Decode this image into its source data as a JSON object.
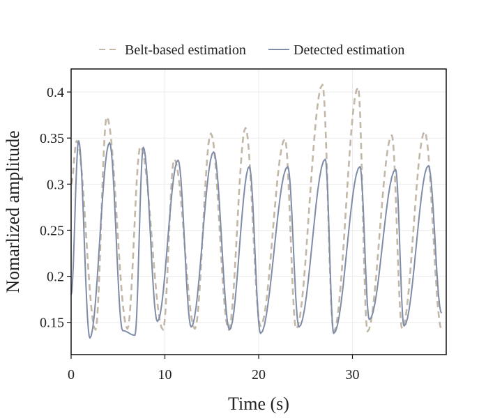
{
  "chart_data": {
    "type": "line",
    "xlabel": "Time (s)",
    "ylabel": "Nomarlized amplitude",
    "xlim": [
      0,
      40
    ],
    "ylim": [
      0.115,
      0.425
    ],
    "xticks": [
      0,
      10,
      20,
      30
    ],
    "yticks": [
      0.15,
      0.2,
      0.25,
      0.3,
      0.35,
      0.4
    ],
    "ytick_labels": [
      "0.15",
      "0.2",
      "0.25",
      "0.3",
      "0.35",
      "0.4"
    ],
    "grid": true,
    "legend_position": "top",
    "series": [
      {
        "name": "Belt-based estimation",
        "style": "dashed",
        "color": "#c3b8a8",
        "troughs": [
          [
            0.0,
            0.3
          ],
          [
            2.6,
            0.142
          ],
          [
            6.0,
            0.143
          ],
          [
            9.8,
            0.142
          ],
          [
            13.2,
            0.143
          ],
          [
            16.8,
            0.142
          ],
          [
            20.2,
            0.146
          ],
          [
            24.0,
            0.143
          ],
          [
            28.0,
            0.14
          ],
          [
            31.6,
            0.14
          ],
          [
            35.3,
            0.143
          ],
          [
            39.5,
            0.143
          ]
        ],
        "peaks": [
          [
            0.6,
            0.347
          ],
          [
            3.8,
            0.373
          ],
          [
            7.4,
            0.341
          ],
          [
            11.0,
            0.327
          ],
          [
            14.9,
            0.355
          ],
          [
            18.6,
            0.361
          ],
          [
            22.8,
            0.349
          ],
          [
            26.8,
            0.408
          ],
          [
            30.6,
            0.405
          ],
          [
            34.2,
            0.353
          ],
          [
            37.7,
            0.357
          ]
        ]
      },
      {
        "name": "Detected estimation",
        "style": "solid",
        "color": "#7f8ca8",
        "troughs": [
          [
            0.0,
            0.18
          ],
          [
            2.0,
            0.133
          ],
          [
            5.5,
            0.141
          ],
          [
            6.8,
            0.136
          ],
          [
            9.2,
            0.151
          ],
          [
            12.8,
            0.145
          ],
          [
            16.9,
            0.142
          ],
          [
            20.2,
            0.138
          ],
          [
            24.3,
            0.145
          ],
          [
            28.0,
            0.138
          ],
          [
            31.8,
            0.153
          ],
          [
            35.5,
            0.146
          ],
          [
            39.5,
            0.16
          ]
        ],
        "peaks": [
          [
            0.8,
            0.347
          ],
          [
            4.1,
            0.345
          ],
          [
            7.7,
            0.34
          ],
          [
            11.4,
            0.326
          ],
          [
            15.2,
            0.335
          ],
          [
            19.0,
            0.319
          ],
          [
            23.1,
            0.319
          ],
          [
            27.1,
            0.327
          ],
          [
            30.8,
            0.319
          ],
          [
            34.6,
            0.316
          ],
          [
            38.1,
            0.32
          ]
        ]
      }
    ]
  }
}
